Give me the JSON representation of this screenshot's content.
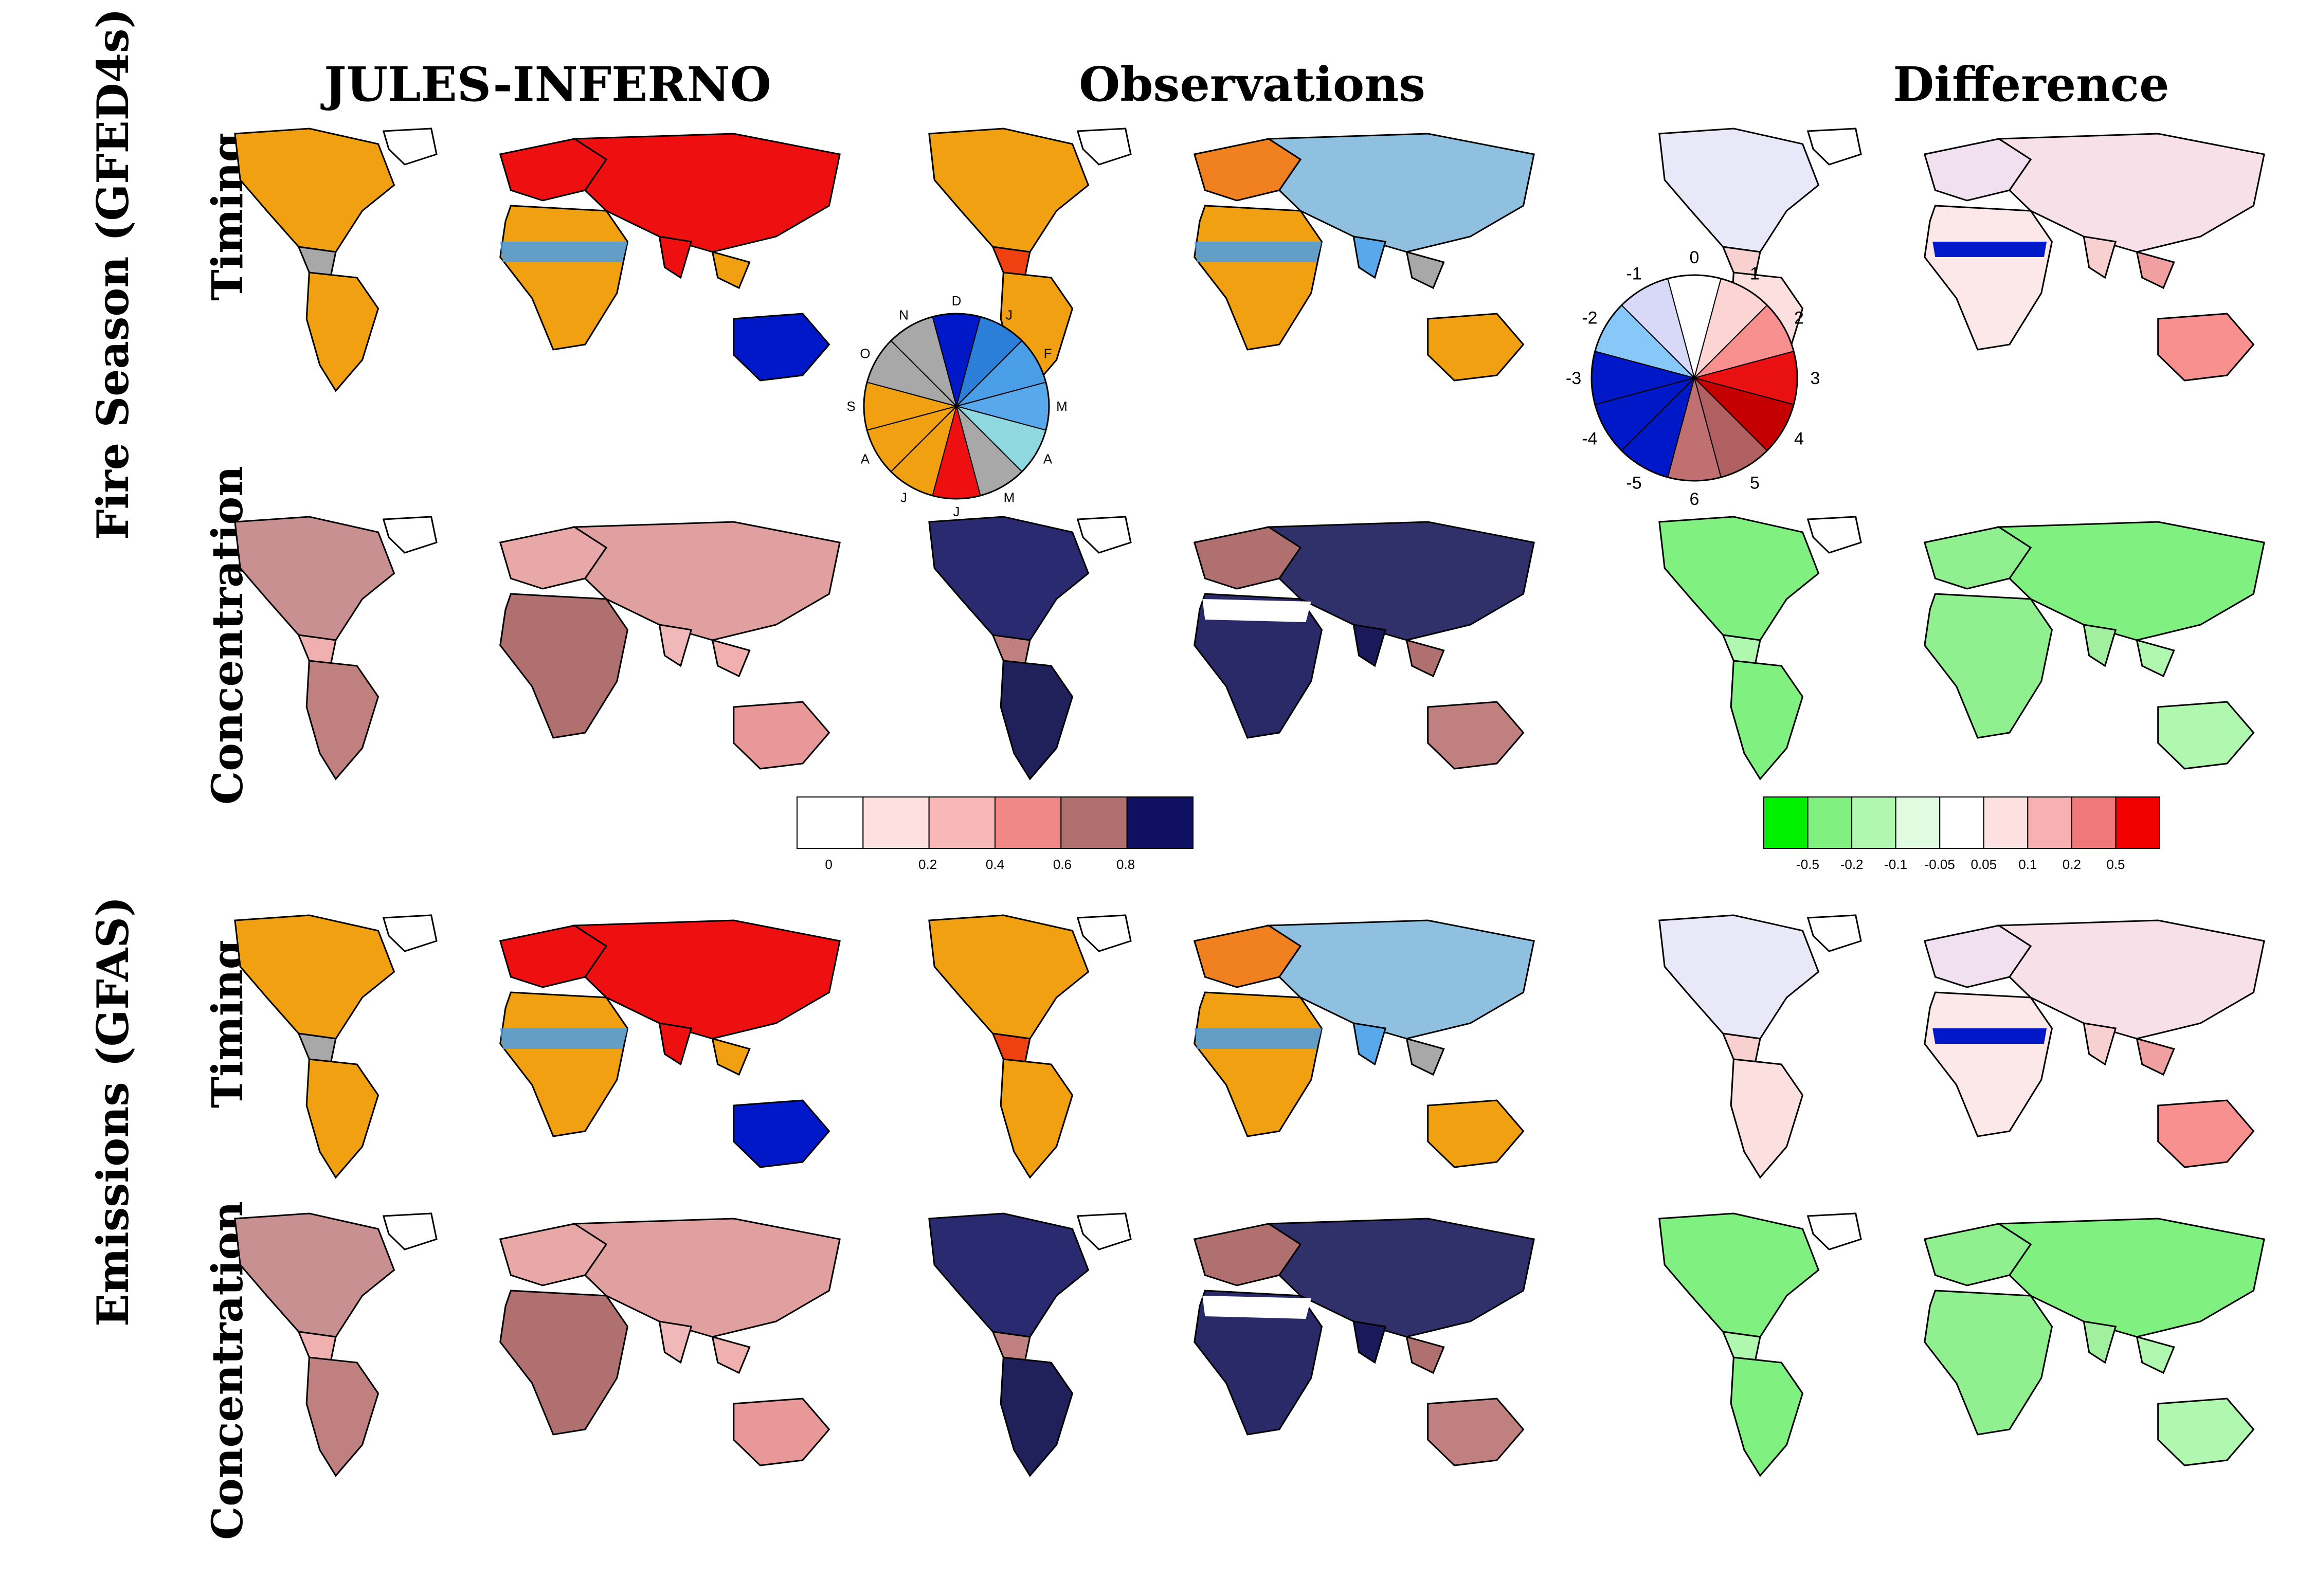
{
  "columns": [
    "JULES-INFERNO",
    "Observations",
    "Difference"
  ],
  "groups": [
    {
      "label": "Fire Season (GFED4s)",
      "rows": [
        "Timing",
        "Concentration"
      ]
    },
    {
      "label": "Emissions (GFAS)",
      "rows": [
        "Timing",
        "Concentration"
      ]
    }
  ],
  "month_wheel": {
    "labels": [
      "D",
      "J",
      "F",
      "M",
      "A",
      "M",
      "J",
      "J",
      "A",
      "S",
      "O",
      "N"
    ],
    "colors": [
      "#0018c8",
      "#2b7fd8",
      "#4a9ee8",
      "#5aa8ec",
      "#8fd8e0",
      "#a8a8a8",
      "#ee1010",
      "#f0a010",
      "#f0a010",
      "#f0a010",
      "#a8a8a8",
      "#a8a8a8"
    ]
  },
  "difference_wheel": {
    "labels": [
      "0",
      "1",
      "2",
      "3",
      "4",
      "5",
      "6",
      "-5",
      "-4",
      "-3",
      "-2",
      "-1"
    ],
    "colors": [
      "#ffffff",
      "#fcd4d4",
      "#f89090",
      "#e81010",
      "#c40000",
      "#b06060",
      "#c07070",
      "#0018c8",
      "#0018c8",
      "#0018c8",
      "#88c8f8",
      "#d8d8f8"
    ]
  },
  "concentration_legend": {
    "ticks": [
      "0",
      "0.2",
      "0.4",
      "0.6",
      "0.8"
    ],
    "colors": [
      "#ffffff",
      "#fde0e0",
      "#f8b8b8",
      "#f08888",
      "#b07070",
      "#101060"
    ]
  },
  "difference_legend": {
    "ticks": [
      "-0.5",
      "-0.2",
      "-0.1",
      "-0.05",
      "0.05",
      "0.1",
      "0.2",
      "0.5"
    ],
    "colors": [
      "#00f000",
      "#80f080",
      "#b0f8b0",
      "#e0fce0",
      "#ffffff",
      "#fde0e0",
      "#f8b0b0",
      "#f07878",
      "#f00000"
    ]
  }
}
